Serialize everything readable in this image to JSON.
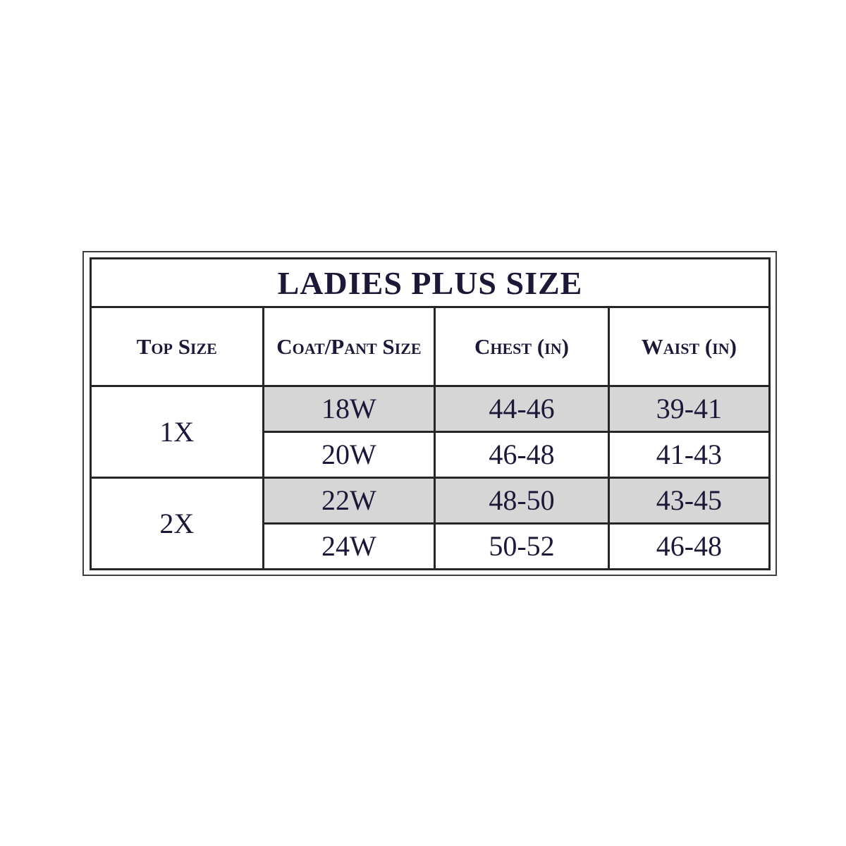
{
  "table": {
    "title": "LADIES PLUS SIZE",
    "headers": [
      "Top Size",
      "Coat/Pant Size",
      "Chest (in)",
      "Waist (in)"
    ],
    "groups": [
      {
        "top_size": "1X",
        "rows": [
          {
            "coat_pant_size": "18W",
            "chest_in": "44-46",
            "waist_in": "39-41",
            "shaded": true
          },
          {
            "coat_pant_size": "20W",
            "chest_in": "46-48",
            "waist_in": "41-43",
            "shaded": false
          }
        ]
      },
      {
        "top_size": "2X",
        "rows": [
          {
            "coat_pant_size": "22W",
            "chest_in": "48-50",
            "waist_in": "43-45",
            "shaded": true
          },
          {
            "coat_pant_size": "24W",
            "chest_in": "50-52",
            "waist_in": "46-48",
            "shaded": false
          }
        ]
      }
    ]
  },
  "colors": {
    "ink": "#1c1838",
    "border": "#262626",
    "frame": "#3f3f3f",
    "shade": "#d6d6d6",
    "page_bg": "#ffffff"
  }
}
